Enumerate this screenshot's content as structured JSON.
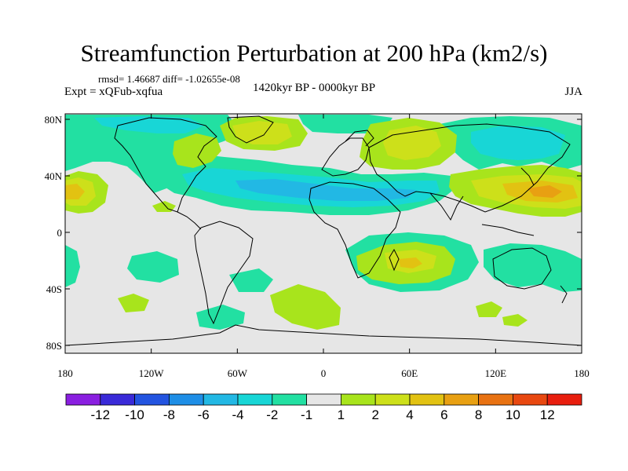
{
  "header": {
    "title": "Streamfunction Perturbation at 200 hPa (km2/s)",
    "stats": "rmsd= 1.46687 diff= -1.02655e-08",
    "experiment": "Expt = xQFub-xqfua",
    "period": "1420kyr BP - 0000kyr BP",
    "season": "JJA"
  },
  "axes": {
    "lat_labels": [
      "80N",
      "40N",
      "0",
      "40S",
      "80S"
    ],
    "lon_labels": [
      "180",
      "120W",
      "60W",
      "0",
      "60E",
      "120E",
      "180"
    ]
  },
  "colorbar": {
    "labels": [
      "-12",
      "-10",
      "-8",
      "-6",
      "-4",
      "-2",
      "-1",
      "1",
      "2",
      "4",
      "6",
      "8",
      "10",
      "12"
    ],
    "colors": [
      "#8a1fe0",
      "#3a2ad8",
      "#2354e0",
      "#1e8ee6",
      "#22b8e4",
      "#18d6d6",
      "#22e0a2",
      "#e6e6e6",
      "#a8e41c",
      "#cde01a",
      "#e2c212",
      "#e8a012",
      "#e87212",
      "#e84810",
      "#e81e0e"
    ]
  },
  "map_colors": {
    "background": "#e6e6e6",
    "neg1": "#22e0a2",
    "neg2": "#18d6d6",
    "neg3": "#22b8e4",
    "pos1": "#a8e41c",
    "pos2": "#cde01a",
    "pos3": "#e2c212",
    "pos4": "#e8a012",
    "coast": "#000000"
  }
}
